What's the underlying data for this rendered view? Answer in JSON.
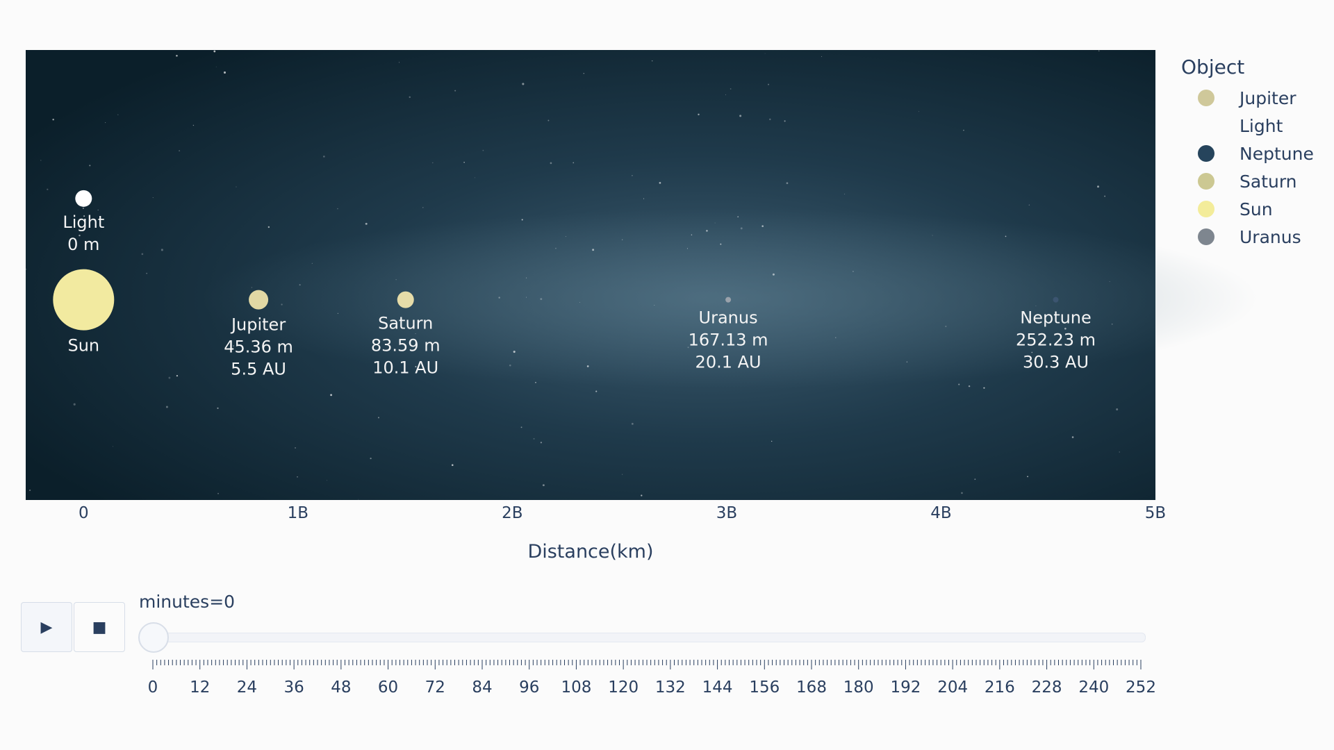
{
  "chart_data": {
    "type": "scatter",
    "xlabel": "Distance(km)",
    "xlim": [
      -0.27,
      5.0
    ],
    "ylim": [
      0,
      1
    ],
    "x_ticks": [
      {
        "value": 0,
        "label": "0"
      },
      {
        "value": 1,
        "label": "1B"
      },
      {
        "value": 2,
        "label": "2B"
      },
      {
        "value": 3,
        "label": "3B"
      },
      {
        "value": 4,
        "label": "4B"
      },
      {
        "value": 5,
        "label": "5B"
      }
    ],
    "points": [
      {
        "name": "Light",
        "x": 0,
        "y": 0.67,
        "size": 12,
        "color": "#ffffff",
        "labels": [
          "Light",
          "0 m"
        ],
        "label_pos": "below"
      },
      {
        "name": "Sun",
        "x": 0,
        "y": 0.445,
        "size": 44,
        "color": "#f2eaa0",
        "labels": [
          "Sun"
        ],
        "label_pos": "below"
      },
      {
        "name": "Jupiter",
        "x": 0.816,
        "y": 0.445,
        "size": 14,
        "color": "#e2d8a4",
        "labels": [
          "Jupiter",
          "45.36 m",
          "5.5 AU"
        ],
        "label_pos": "below"
      },
      {
        "name": "Saturn",
        "x": 1.502,
        "y": 0.445,
        "size": 12,
        "color": "#e6dca8",
        "labels": [
          "Saturn",
          "83.59 m",
          "10.1 AU"
        ],
        "label_pos": "below"
      },
      {
        "name": "Uranus",
        "x": 3.007,
        "y": 0.445,
        "size": 4,
        "color": "#9aa2ab",
        "labels": [
          "Uranus",
          "167.13 m",
          "20.1 AU"
        ],
        "label_pos": "below"
      },
      {
        "name": "Neptune",
        "x": 4.535,
        "y": 0.445,
        "size": 4,
        "color": "#3c5570",
        "labels": [
          "Neptune",
          "252.23 m",
          "30.3 AU"
        ],
        "label_pos": "below"
      }
    ],
    "colors": {
      "background_dark": "#0b1f2a",
      "background_glow": "#37566a",
      "legend_jupiter": "#cfc89a",
      "legend_neptune": "#26445c",
      "legend_saturn": "#ccc892",
      "legend_sun": "#f3ec9a",
      "legend_uranus": "#7e868f"
    }
  },
  "legend": {
    "title": "Object",
    "items": [
      {
        "label": "Jupiter",
        "color": "#cfc89a",
        "swatch": true
      },
      {
        "label": "Light",
        "color": "",
        "swatch": false
      },
      {
        "label": "Neptune",
        "color": "#26445c",
        "swatch": true
      },
      {
        "label": "Saturn",
        "color": "#ccc892",
        "swatch": true
      },
      {
        "label": "Sun",
        "color": "#f3ec9a",
        "swatch": true
      },
      {
        "label": "Uranus",
        "color": "#7e868f",
        "swatch": true
      }
    ]
  },
  "controls": {
    "play_icon": "play-icon",
    "stop_icon": "stop-icon",
    "play_glyph": "▶",
    "stop_glyph": "■",
    "slider_label": "minutes=0",
    "slider_value": 0,
    "slider_min": 0,
    "slider_max": 252,
    "slider_tick_labels": [
      "0",
      "12",
      "24",
      "36",
      "48",
      "60",
      "72",
      "84",
      "96",
      "108",
      "120",
      "132",
      "144",
      "156",
      "168",
      "180",
      "192",
      "204",
      "216",
      "228",
      "240",
      "252"
    ]
  }
}
